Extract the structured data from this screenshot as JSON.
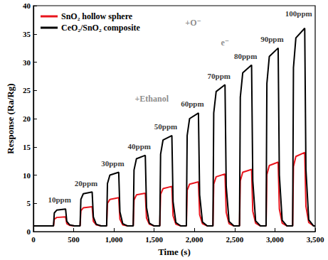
{
  "chart_data": {
    "type": "line",
    "x_label": "Time (s)",
    "y_label": "Response (Ra/Rg)",
    "x": [
      0,
      250,
      260,
      290,
      400,
      415,
      450,
      510,
      580,
      590,
      620,
      730,
      745,
      780,
      840,
      910,
      920,
      950,
      1060,
      1075,
      1110,
      1170,
      1240,
      1250,
      1280,
      1390,
      1405,
      1440,
      1500,
      1570,
      1580,
      1610,
      1720,
      1735,
      1770,
      1830,
      1900,
      1910,
      1940,
      2050,
      2065,
      2100,
      2160,
      2230,
      2240,
      2270,
      2380,
      2395,
      2430,
      2490,
      2560,
      2570,
      2600,
      2710,
      2725,
      2760,
      2820,
      2890,
      2900,
      2930,
      3040,
      3055,
      3090,
      3150,
      3220,
      3230,
      3260,
      3370,
      3385,
      3420,
      3480,
      3500
    ],
    "series": [
      {
        "name": "SnO₂ hollow sphere",
        "color": "#e8141c",
        "values": [
          1,
          1,
          2.2,
          2.5,
          2.6,
          1.4,
          1.1,
          1,
          1,
          3.7,
          4.2,
          4.4,
          1.8,
          1.2,
          1,
          1,
          5,
          5.7,
          6,
          2.2,
          1.2,
          1,
          1,
          5.6,
          6.5,
          6.8,
          2.4,
          1.3,
          1,
          1,
          6.6,
          7.6,
          8,
          2.8,
          1.3,
          1,
          1,
          7.3,
          8.4,
          8.8,
          3,
          1.4,
          1,
          1,
          8.4,
          9.7,
          10.2,
          3.4,
          1.4,
          1,
          1,
          9,
          10.5,
          11,
          3.6,
          1.5,
          1,
          1,
          10.1,
          11.7,
          12.3,
          4,
          1.5,
          1,
          1,
          11.5,
          13.3,
          14,
          4.5,
          1.6,
          1,
          1
        ]
      },
      {
        "name": "CeO₂/SnO₂ composite",
        "color": "#000000",
        "values": [
          1,
          1,
          3.3,
          3.8,
          4,
          1.8,
          1.2,
          1,
          1,
          5.7,
          6.7,
          7,
          2.6,
          1.3,
          1,
          1,
          8.5,
          10,
          10.5,
          3.5,
          1.4,
          1,
          1,
          10.9,
          12.9,
          13.5,
          4.3,
          1.5,
          1,
          1,
          13.7,
          16.2,
          17,
          5.3,
          1.6,
          1,
          1,
          17,
          20,
          21,
          6.5,
          1.7,
          1,
          1,
          21,
          24.8,
          26,
          8,
          1.8,
          1,
          1,
          23.8,
          28.1,
          29.5,
          9,
          1.9,
          1,
          1,
          26.2,
          31,
          32.5,
          10,
          2,
          1,
          1,
          29,
          34.3,
          36,
          11,
          2.1,
          1,
          1
        ]
      }
    ],
    "concentration_labels": [
      {
        "text": "10ppm",
        "x": 325,
        "y": 5.6
      },
      {
        "text": "20ppm",
        "x": 655,
        "y": 8.6
      },
      {
        "text": "30ppm",
        "x": 985,
        "y": 12.1
      },
      {
        "text": "40ppm",
        "x": 1315,
        "y": 15.1
      },
      {
        "text": "50ppm",
        "x": 1645,
        "y": 18.6
      },
      {
        "text": "60ppm",
        "x": 1975,
        "y": 22.6
      },
      {
        "text": "70ppm",
        "x": 2305,
        "y": 27.6
      },
      {
        "text": "80ppm",
        "x": 2635,
        "y": 31.1
      },
      {
        "text": "90ppm",
        "x": 2965,
        "y": 34.1
      },
      {
        "text": "100ppm",
        "x": 3295,
        "y": 38.6
      }
    ],
    "inset_labels": [
      {
        "text": "+O⁻",
        "x": 1985,
        "y": 37
      },
      {
        "text": "+Ethanol",
        "x": 1470,
        "y": 23.5
      },
      {
        "text": "e⁻",
        "x": 2380,
        "y": 33.5
      }
    ],
    "xlim": [
      0,
      3500
    ],
    "xticks": [
      0,
      500,
      1000,
      1500,
      2000,
      2500,
      3000,
      3500
    ],
    "ylim": [
      0,
      40
    ],
    "yticks": [
      0,
      5,
      10,
      15,
      20,
      25,
      30,
      35,
      40
    ],
    "grid": false,
    "legend": "upper left"
  }
}
